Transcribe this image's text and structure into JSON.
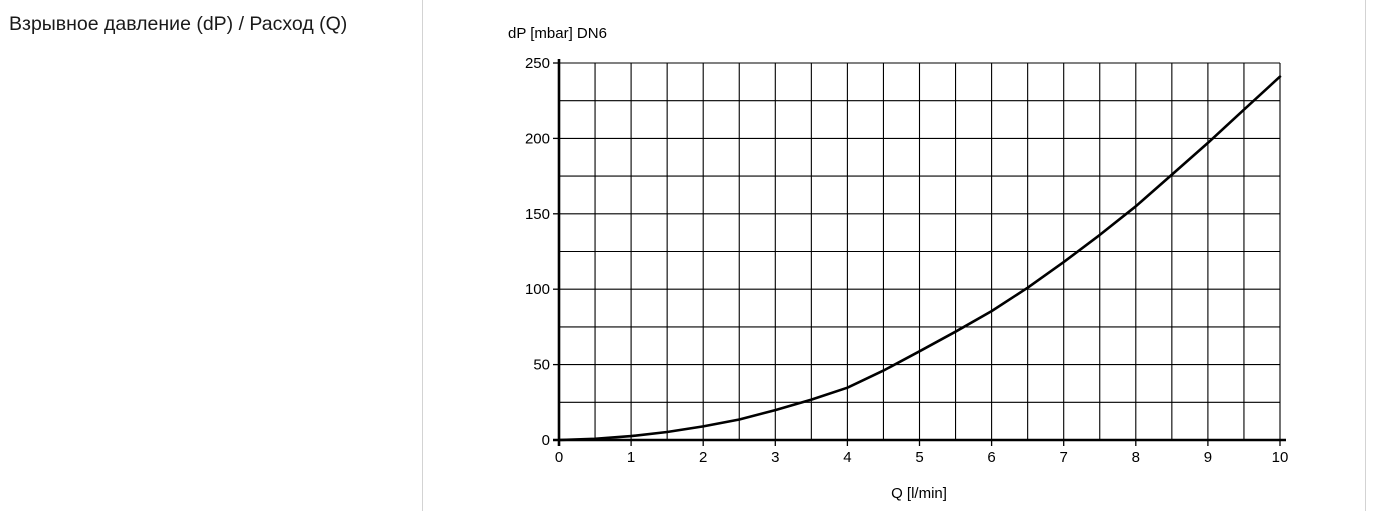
{
  "section": {
    "title": "Взрывное давление (dP) / Расход (Q)"
  },
  "chart_data": {
    "type": "line",
    "title": "",
    "ylabel": "dP [mbar] DN6",
    "xlabel": "Q [l/min]",
    "xlim": [
      0,
      10
    ],
    "ylim": [
      0,
      250
    ],
    "x_ticks": [
      0,
      1,
      2,
      3,
      4,
      5,
      6,
      7,
      8,
      9,
      10
    ],
    "x_tick_labels": [
      "0",
      "1",
      "2",
      "3",
      "4",
      "5",
      "6",
      "7",
      "8",
      "9",
      "10"
    ],
    "y_ticks": [
      0,
      50,
      100,
      150,
      200,
      250
    ],
    "y_tick_labels": [
      "0",
      "50",
      "100",
      "150",
      "200",
      "250"
    ],
    "x_grid_step": 0.5,
    "y_grid_step": 25,
    "grid": true,
    "legend": "none",
    "line_color": "#000000",
    "series": [
      {
        "x": [
          0,
          0.5,
          1,
          1.5,
          2,
          2.5,
          3,
          3.5,
          4,
          4.5,
          5,
          5.5,
          6,
          6.5,
          7,
          7.5,
          8,
          8.5,
          9,
          9.5,
          10
        ],
        "values": [
          0,
          0.8,
          2.6,
          5.3,
          9,
          13.6,
          19.8,
          26.8,
          34.7,
          46,
          58.8,
          71.8,
          85.5,
          101,
          118,
          136,
          155,
          176,
          197,
          219,
          241
        ]
      }
    ]
  }
}
